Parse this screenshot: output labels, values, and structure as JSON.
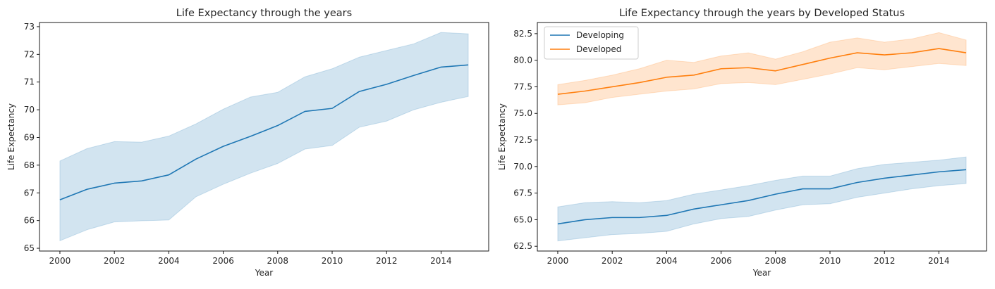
{
  "chart_data": [
    {
      "type": "line",
      "title": "Life Expectancy through the years",
      "xlabel": "Year",
      "ylabel": "Life Expectancy",
      "xlim": [
        1999.25,
        2015.75
      ],
      "ylim": [
        64.9,
        73.15
      ],
      "xticks": [
        2000,
        2002,
        2004,
        2006,
        2008,
        2010,
        2012,
        2014
      ],
      "yticks": [
        65,
        66,
        67,
        68,
        69,
        70,
        71,
        72,
        73
      ],
      "x": [
        2000,
        2001,
        2002,
        2003,
        2004,
        2005,
        2006,
        2007,
        2008,
        2009,
        2010,
        2011,
        2012,
        2013,
        2014,
        2015
      ],
      "grid": false,
      "series": [
        {
          "color": "#1f77b4",
          "values": [
            66.75,
            67.13,
            67.35,
            67.43,
            67.65,
            68.22,
            68.68,
            69.04,
            69.43,
            69.94,
            70.05,
            70.66,
            70.92,
            71.24,
            71.54,
            71.62
          ],
          "ci_lower": [
            65.27,
            65.67,
            65.95,
            65.99,
            66.02,
            66.86,
            67.31,
            67.71,
            68.06,
            68.58,
            68.71,
            69.37,
            69.59,
            70.0,
            70.27,
            70.48
          ],
          "ci_upper": [
            68.15,
            68.6,
            68.85,
            68.83,
            69.05,
            69.49,
            70.02,
            70.46,
            70.63,
            71.19,
            71.48,
            71.9,
            72.14,
            72.38,
            72.79,
            72.74
          ]
        }
      ]
    },
    {
      "type": "line",
      "title": "Life Expectancy through the years by Developed Status",
      "xlabel": "Year",
      "ylabel": "Life Expectancy",
      "xlim": [
        1999.25,
        2015.75
      ],
      "ylim": [
        62.05,
        83.55
      ],
      "xticks": [
        2000,
        2002,
        2004,
        2006,
        2008,
        2010,
        2012,
        2014
      ],
      "yticks": [
        62.5,
        65.0,
        67.5,
        70.0,
        72.5,
        75.0,
        77.5,
        80.0,
        82.5
      ],
      "x": [
        2000,
        2001,
        2002,
        2003,
        2004,
        2005,
        2006,
        2007,
        2008,
        2009,
        2010,
        2011,
        2012,
        2013,
        2014,
        2015
      ],
      "grid": false,
      "legend": "top-left",
      "series": [
        {
          "name": "Developing",
          "color": "#1f77b4",
          "values": [
            64.6,
            65.0,
            65.2,
            65.2,
            65.4,
            66.0,
            66.4,
            66.8,
            67.4,
            67.9,
            67.9,
            68.5,
            68.9,
            69.2,
            69.5,
            69.7
          ],
          "ci_lower": [
            63.0,
            63.3,
            63.6,
            63.7,
            63.9,
            64.6,
            65.1,
            65.3,
            65.9,
            66.4,
            66.5,
            67.1,
            67.5,
            67.9,
            68.2,
            68.4
          ],
          "ci_upper": [
            66.2,
            66.6,
            66.7,
            66.6,
            66.8,
            67.4,
            67.8,
            68.2,
            68.7,
            69.1,
            69.1,
            69.8,
            70.2,
            70.4,
            70.6,
            70.9
          ]
        },
        {
          "name": "Developed",
          "color": "#ff7f0e",
          "values": [
            76.8,
            77.1,
            77.5,
            77.9,
            78.4,
            78.6,
            79.2,
            79.3,
            79.0,
            79.6,
            80.2,
            80.7,
            80.5,
            80.7,
            81.1,
            80.7
          ],
          "ci_lower": [
            75.8,
            76.0,
            76.5,
            76.8,
            77.1,
            77.3,
            77.8,
            77.9,
            77.7,
            78.2,
            78.7,
            79.3,
            79.1,
            79.4,
            79.7,
            79.5
          ],
          "ci_upper": [
            77.7,
            78.1,
            78.6,
            79.2,
            80.0,
            79.8,
            80.4,
            80.7,
            80.1,
            80.8,
            81.7,
            82.1,
            81.7,
            82.0,
            82.6,
            81.9
          ]
        }
      ]
    }
  ]
}
